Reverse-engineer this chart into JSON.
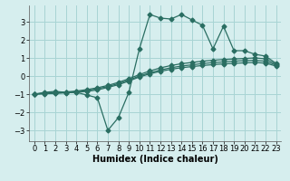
{
  "xlabel": "Humidex (Indice chaleur)",
  "bg_color": "#d6eeee",
  "grid_color": "#a8d4d4",
  "line_color": "#2a6e62",
  "xlim": [
    -0.5,
    23.5
  ],
  "ylim": [
    -3.6,
    3.9
  ],
  "yticks": [
    -3,
    -2,
    -1,
    0,
    1,
    2,
    3
  ],
  "xticks": [
    0,
    1,
    2,
    3,
    4,
    5,
    6,
    7,
    8,
    9,
    10,
    11,
    12,
    13,
    14,
    15,
    16,
    17,
    18,
    19,
    20,
    21,
    22,
    23
  ],
  "line1_x": [
    0,
    1,
    2,
    3,
    4,
    5,
    6,
    7,
    8,
    9,
    10,
    11,
    12,
    13,
    14,
    15,
    16,
    17,
    18,
    19,
    20,
    21,
    22,
    23
  ],
  "line1_y": [
    -1.0,
    -0.95,
    -0.92,
    -0.88,
    -0.83,
    -0.75,
    -0.65,
    -0.52,
    -0.35,
    -0.15,
    0.08,
    0.28,
    0.45,
    0.58,
    0.68,
    0.75,
    0.82,
    0.87,
    0.91,
    0.94,
    0.97,
    1.0,
    0.95,
    0.65
  ],
  "line2_x": [
    0,
    1,
    2,
    3,
    4,
    5,
    6,
    7,
    8,
    9,
    10,
    11,
    12,
    13,
    14,
    15,
    16,
    17,
    18,
    19,
    20,
    21,
    22,
    23
  ],
  "line2_y": [
    -1.0,
    -0.97,
    -0.94,
    -0.91,
    -0.87,
    -0.8,
    -0.7,
    -0.58,
    -0.42,
    -0.22,
    0.0,
    0.18,
    0.33,
    0.46,
    0.55,
    0.62,
    0.69,
    0.74,
    0.78,
    0.82,
    0.85,
    0.87,
    0.82,
    0.6
  ],
  "line3_x": [
    0,
    1,
    2,
    3,
    4,
    5,
    6,
    7,
    8,
    9,
    10,
    11,
    12,
    13,
    14,
    15,
    16,
    17,
    18,
    19,
    20,
    21,
    22,
    23
  ],
  "line3_y": [
    -1.0,
    -0.98,
    -0.96,
    -0.93,
    -0.9,
    -0.85,
    -0.77,
    -0.63,
    -0.48,
    -0.28,
    -0.05,
    0.12,
    0.26,
    0.37,
    0.46,
    0.52,
    0.58,
    0.63,
    0.67,
    0.7,
    0.73,
    0.75,
    0.71,
    0.55
  ],
  "line4_x": [
    0,
    1,
    2,
    3,
    4,
    5,
    6,
    7,
    8,
    9,
    10,
    11,
    12,
    13,
    14,
    15,
    16,
    17,
    18,
    19,
    20,
    21,
    22,
    23
  ],
  "line4_y": [
    -1.0,
    -0.9,
    -0.85,
    -0.9,
    -0.9,
    -1.05,
    -1.2,
    -3.0,
    -2.3,
    -0.9,
    1.5,
    3.4,
    3.2,
    3.15,
    3.4,
    3.1,
    2.8,
    1.5,
    2.75,
    1.4,
    1.4,
    1.2,
    1.1,
    0.7
  ],
  "fontsize_xlabel": 7,
  "fontsize_tick": 6
}
